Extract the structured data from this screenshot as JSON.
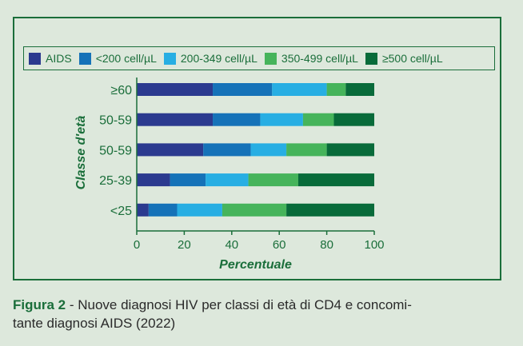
{
  "caption": {
    "figure_label": "Figura 2",
    "text_line1": " - Nuove diagnosi HIV per classi di età di CD4 e concomi-",
    "text_line2": "tante diagnosi AIDS (2022)"
  },
  "colors": {
    "frame": "#1a6e3a",
    "background": "#dde8dc"
  },
  "chart_data": {
    "type": "bar",
    "orientation": "horizontal",
    "stacked": true,
    "categories": [
      "≥60",
      "50-59",
      "50-59",
      "25-39",
      "<25"
    ],
    "ylabel": "Classe d'età",
    "xlabel": "Percentuale",
    "xlim": [
      0,
      100
    ],
    "xticks": [
      0,
      20,
      40,
      60,
      80,
      100
    ],
    "grid": false,
    "legend_position": "top",
    "series": [
      {
        "name": "AIDS",
        "color": "#2b3a8f",
        "values": [
          32,
          32,
          28,
          14,
          5
        ]
      },
      {
        "name": "<200 cell/µL",
        "color": "#1572b8",
        "values": [
          25,
          20,
          20,
          15,
          12
        ]
      },
      {
        "name": "200-349 cell/µL",
        "color": "#27aee3",
        "values": [
          23,
          18,
          15,
          18,
          19
        ]
      },
      {
        "name": "350-499 cell/µL",
        "color": "#46b45b",
        "values": [
          8,
          13,
          17,
          21,
          27
        ]
      },
      {
        "name": "≥500 cell/µL",
        "color": "#086b3a",
        "values": [
          12,
          17,
          20,
          32,
          37
        ]
      }
    ]
  }
}
